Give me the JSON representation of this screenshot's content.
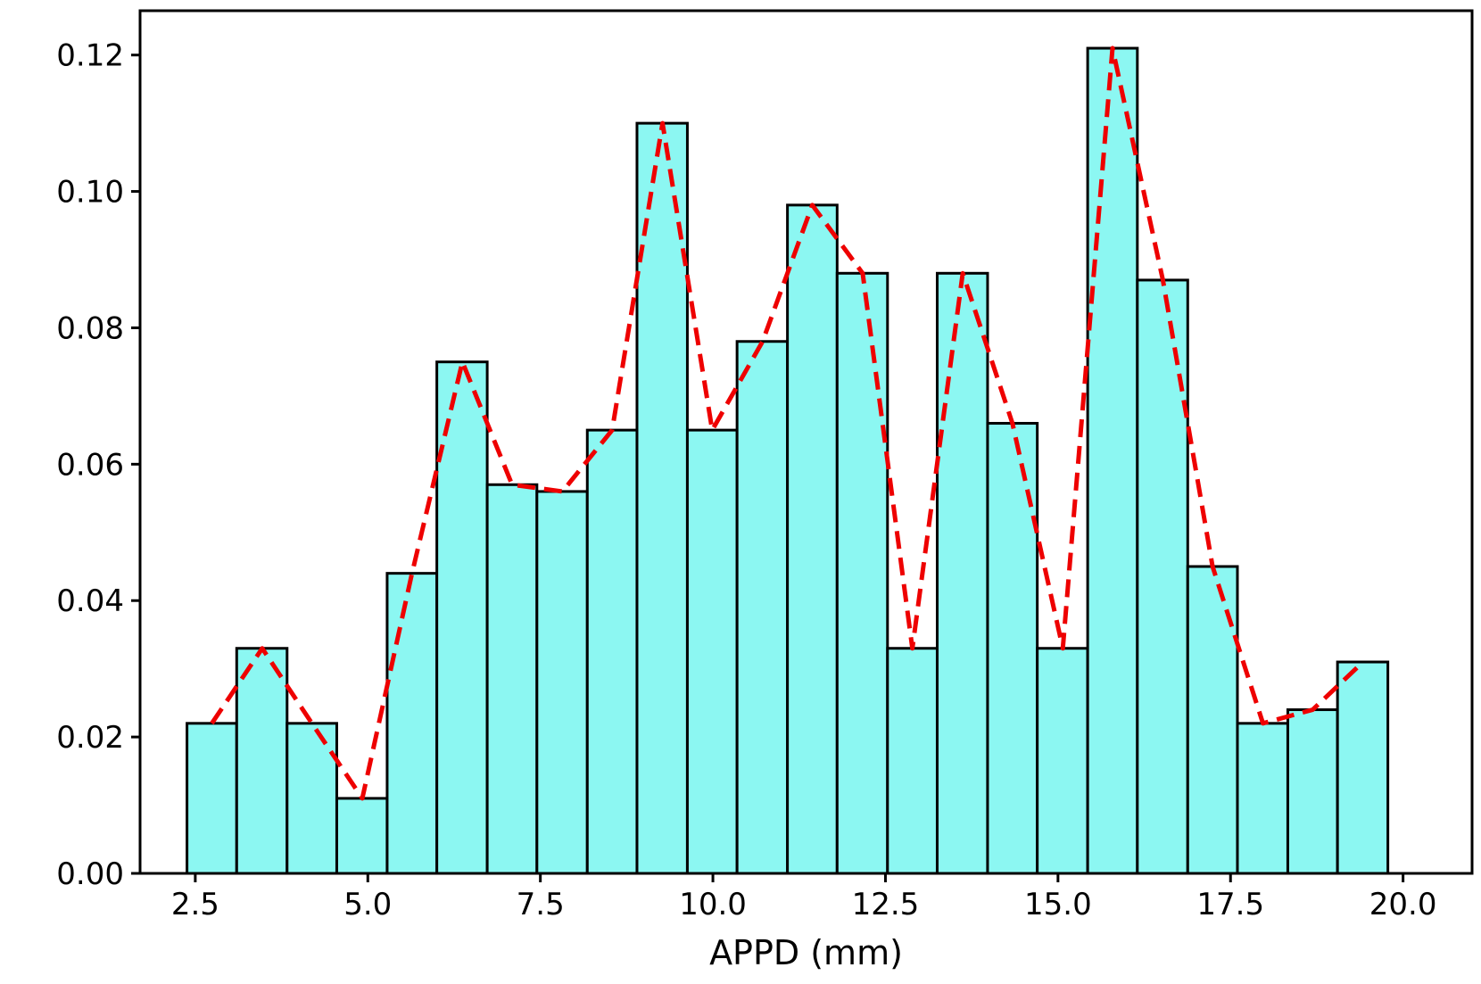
{
  "chart_data": {
    "type": "bar",
    "subtype": "histogram-with-density-line",
    "title": "",
    "xlabel": "APPD (mm)",
    "ylabel": "",
    "xlim": [
      1.7,
      21.0
    ],
    "ylim": [
      0,
      0.1265
    ],
    "xticks": [
      2.5,
      5.0,
      7.5,
      10.0,
      12.5,
      15.0,
      17.5,
      20.0
    ],
    "xtick_labels": [
      "2.5",
      "5.0",
      "7.5",
      "10.0",
      "12.5",
      "15.0",
      "17.5",
      "20.0"
    ],
    "yticks": [
      0.0,
      0.02,
      0.04,
      0.06,
      0.08,
      0.1,
      0.12
    ],
    "ytick_labels": [
      "0.00",
      "0.02",
      "0.04",
      "0.06",
      "0.08",
      "0.10",
      "0.12"
    ],
    "grid": false,
    "legend": "none",
    "bins": {
      "edges": [
        2.38,
        3.1,
        3.83,
        4.55,
        5.28,
        6.0,
        6.73,
        7.45,
        8.18,
        8.9,
        9.63,
        10.35,
        11.08,
        11.8,
        12.53,
        13.25,
        13.98,
        14.7,
        15.43,
        16.15,
        16.88,
        17.6,
        18.33,
        19.05,
        19.78
      ],
      "values": [
        0.022,
        0.033,
        0.022,
        0.011,
        0.044,
        0.075,
        0.057,
        0.056,
        0.065,
        0.11,
        0.065,
        0.078,
        0.098,
        0.088,
        0.033,
        0.088,
        0.066,
        0.033,
        0.121,
        0.087,
        0.045,
        0.022,
        0.024,
        0.031
      ]
    },
    "series": [
      {
        "type": "line",
        "style": "dashed",
        "x": [
          2.74,
          3.47,
          4.19,
          4.92,
          5.64,
          6.37,
          7.09,
          7.82,
          8.54,
          9.27,
          9.99,
          10.72,
          11.44,
          12.17,
          12.89,
          13.62,
          14.34,
          15.07,
          15.79,
          16.52,
          17.24,
          17.97,
          18.69,
          19.42
        ],
        "y": [
          0.022,
          0.033,
          0.022,
          0.011,
          0.044,
          0.075,
          0.057,
          0.056,
          0.065,
          0.11,
          0.065,
          0.078,
          0.098,
          0.088,
          0.033,
          0.088,
          0.066,
          0.033,
          0.121,
          0.087,
          0.045,
          0.022,
          0.024,
          0.031
        ]
      }
    ],
    "colors": {
      "bar_fill": "#8cf7f2",
      "bar_edge": "#000000",
      "line": "#ee0000",
      "axis": "#000000"
    }
  }
}
